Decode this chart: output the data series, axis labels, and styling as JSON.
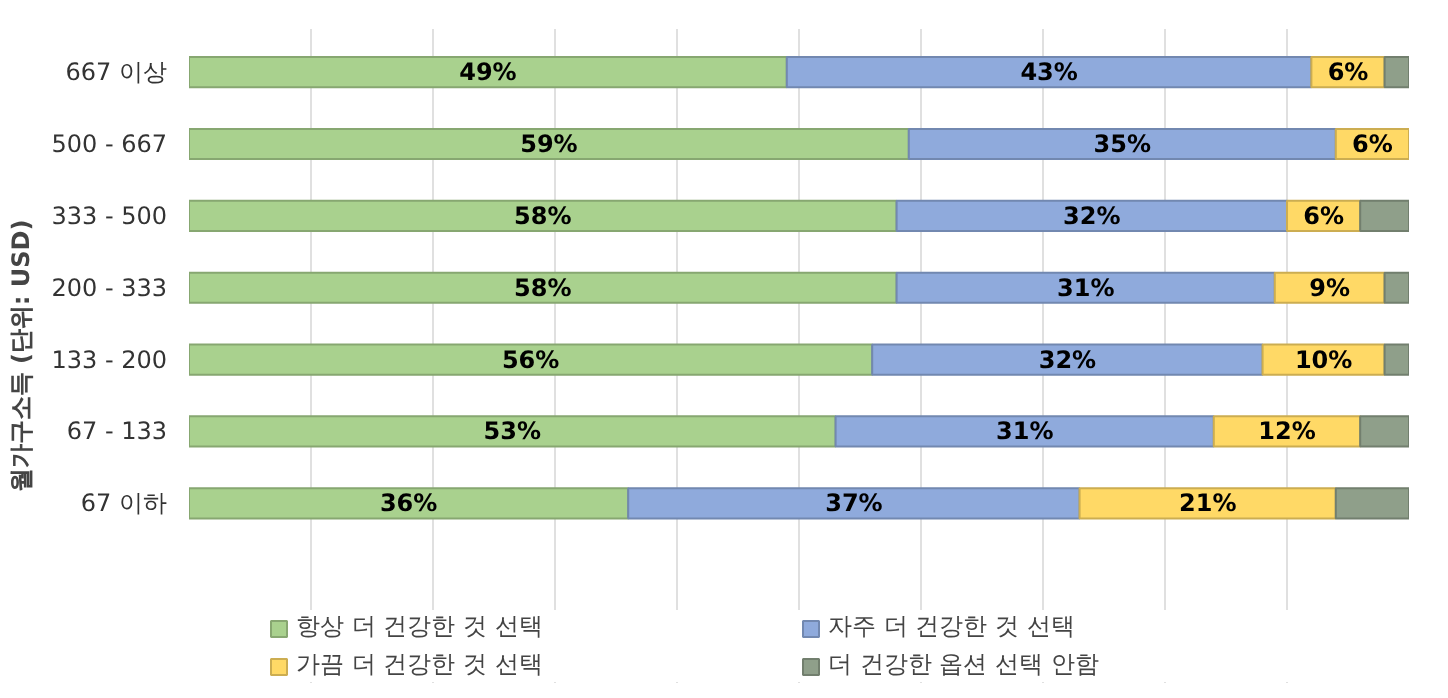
{
  "chart_data": {
    "type": "bar",
    "orientation": "horizontal",
    "stacked": true,
    "ylabel": "월가구소득 (단위: USD)",
    "categories": [
      "667 이상",
      "500 - 667",
      "333 - 500",
      "200 - 333",
      "133 - 200",
      "67 - 133",
      "67 이하"
    ],
    "tick_labels": "y",
    "grid": "x",
    "legend": "bottom",
    "series": [
      {
        "name": "항상 더 건강한 것 선택",
        "color": "#a9d18e",
        "values": [
          49,
          59,
          58,
          58,
          56,
          53,
          36
        ],
        "value_labels": [
          "49%",
          "59%",
          "58%",
          "58%",
          "56%",
          "53%",
          "36%"
        ]
      },
      {
        "name": "자주 더 건강한 것 선택",
        "color": "#8faadc",
        "values": [
          43,
          35,
          32,
          31,
          32,
          31,
          37
        ],
        "value_labels": [
          "43%",
          "35%",
          "32%",
          "31%",
          "32%",
          "31%",
          "37%"
        ]
      },
      {
        "name": "가끔 더 건강한 것 선택",
        "color": "#ffd966",
        "values": [
          6,
          6,
          6,
          9,
          10,
          12,
          21
        ],
        "value_labels": [
          "6%",
          "6%",
          "6%",
          "9%",
          "10%",
          "12%",
          "21%"
        ]
      },
      {
        "name": "더 건강한 옵션 선택 안함",
        "color": "#8f9f8a",
        "values": [
          2,
          null,
          4,
          2,
          2,
          4,
          6
        ],
        "value_labels": [
          null,
          null,
          null,
          null,
          null,
          null,
          null
        ]
      }
    ]
  }
}
